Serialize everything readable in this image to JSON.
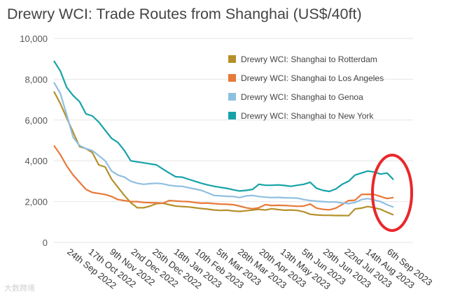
{
  "chart_data": {
    "type": "line",
    "title": "Drewry WCI: Trade Routes from Shanghai (US$/40ft)",
    "xlabel": "",
    "ylabel": "",
    "ylim": [
      0,
      10000
    ],
    "yticks": [
      "0",
      "2,000",
      "4,000",
      "6,000",
      "8,000",
      "10,000"
    ],
    "ytick_values": [
      0,
      2000,
      4000,
      6000,
      8000,
      10000
    ],
    "grid": true,
    "legend_position": "top-right",
    "x_tick_labels": [
      "24th Sep 2022",
      "17th Oct 2022",
      "9th Nov 2022",
      "2nd Dec 2022",
      "25th Dec 2022",
      "18th Jan 2023",
      "10th Feb 2023",
      "5th Mar 2023",
      "28th Mar 2023",
      "20th Apr 2023",
      "13th May 2023",
      "5th Jun 2023",
      "29th Jun 2023",
      "22nd Jul 2023",
      "14th Aug 2023",
      "6th Sep 2023"
    ],
    "x": [
      "2022-09-01",
      "2022-09-08",
      "2022-09-15",
      "2022-09-22",
      "2022-09-29",
      "2022-10-06",
      "2022-10-13",
      "2022-10-20",
      "2022-10-27",
      "2022-11-03",
      "2022-11-10",
      "2022-11-17",
      "2022-11-24",
      "2022-12-01",
      "2022-12-08",
      "2022-12-15",
      "2022-12-22",
      "2022-12-29",
      "2023-01-05",
      "2023-01-12",
      "2023-01-19",
      "2023-01-26",
      "2023-02-02",
      "2023-02-09",
      "2023-02-16",
      "2023-02-23",
      "2023-03-02",
      "2023-03-09",
      "2023-03-16",
      "2023-03-23",
      "2023-03-30",
      "2023-04-06",
      "2023-04-13",
      "2023-04-20",
      "2023-04-27",
      "2023-05-04",
      "2023-05-11",
      "2023-05-18",
      "2023-05-25",
      "2023-06-01",
      "2023-06-08",
      "2023-06-15",
      "2023-06-22",
      "2023-06-29",
      "2023-07-06",
      "2023-07-13",
      "2023-07-20",
      "2023-07-27",
      "2023-08-03",
      "2023-08-10",
      "2023-08-17",
      "2023-08-24",
      "2023-08-31",
      "2023-09-07"
    ],
    "series": [
      {
        "name": "Drewry WCI: Shanghai to Rotterdam",
        "color": "#b5902a",
        "values": [
          7400,
          6800,
          6100,
          5400,
          4700,
          4600,
          4400,
          3800,
          3700,
          3100,
          2700,
          2300,
          1950,
          1700,
          1700,
          1780,
          1900,
          1920,
          1850,
          1780,
          1760,
          1740,
          1700,
          1660,
          1630,
          1590,
          1570,
          1580,
          1540,
          1520,
          1550,
          1590,
          1620,
          1590,
          1650,
          1610,
          1580,
          1590,
          1570,
          1500,
          1380,
          1350,
          1330,
          1330,
          1320,
          1320,
          1310,
          1640,
          1680,
          1760,
          1700,
          1620,
          1480,
          1350
        ]
      },
      {
        "name": "Drewry WCI: Shanghai to Los Angeles",
        "color": "#e8793a",
        "values": [
          4750,
          4300,
          3750,
          3300,
          2950,
          2600,
          2450,
          2400,
          2350,
          2250,
          2100,
          2050,
          2000,
          2000,
          1960,
          1950,
          1940,
          1920,
          2050,
          2030,
          2010,
          2000,
          1960,
          1920,
          1930,
          1900,
          1880,
          1870,
          1850,
          1780,
          1700,
          1650,
          1700,
          1850,
          1810,
          1820,
          1810,
          1790,
          1770,
          1780,
          1880,
          1680,
          1620,
          1600,
          1680,
          1860,
          2050,
          2070,
          2350,
          2360,
          2350,
          2250,
          2150,
          2200
        ]
      },
      {
        "name": "Drewry WCI: Shanghai to Genoa",
        "color": "#8fbfe0",
        "values": [
          7850,
          7300,
          6250,
          5150,
          4750,
          4600,
          4500,
          4250,
          4000,
          3500,
          3300,
          3200,
          3000,
          2900,
          2850,
          2880,
          2900,
          2870,
          2800,
          2760,
          2750,
          2680,
          2620,
          2550,
          2430,
          2300,
          2280,
          2260,
          2250,
          2200,
          2280,
          2300,
          2250,
          2220,
          2200,
          2210,
          2190,
          2180,
          2170,
          2100,
          2050,
          2020,
          2000,
          1980,
          1980,
          1930,
          1900,
          1960,
          2100,
          2150,
          2080,
          2000,
          1850,
          1730
        ]
      },
      {
        "name": "Drewry WCI: Shanghai to New York",
        "color": "#16a3a8",
        "values": [
          8900,
          8400,
          7600,
          7200,
          6900,
          6300,
          6200,
          5900,
          5500,
          5100,
          4900,
          4500,
          4000,
          3950,
          3900,
          3850,
          3800,
          3600,
          3400,
          3220,
          3200,
          3100,
          3000,
          2900,
          2820,
          2750,
          2700,
          2650,
          2580,
          2520,
          2550,
          2600,
          2850,
          2800,
          2800,
          2820,
          2790,
          2750,
          2800,
          2850,
          2950,
          2650,
          2550,
          2500,
          2620,
          2850,
          3000,
          3300,
          3400,
          3500,
          3450,
          3350,
          3400,
          3080
        ]
      }
    ]
  },
  "watermark": "大数跨境"
}
